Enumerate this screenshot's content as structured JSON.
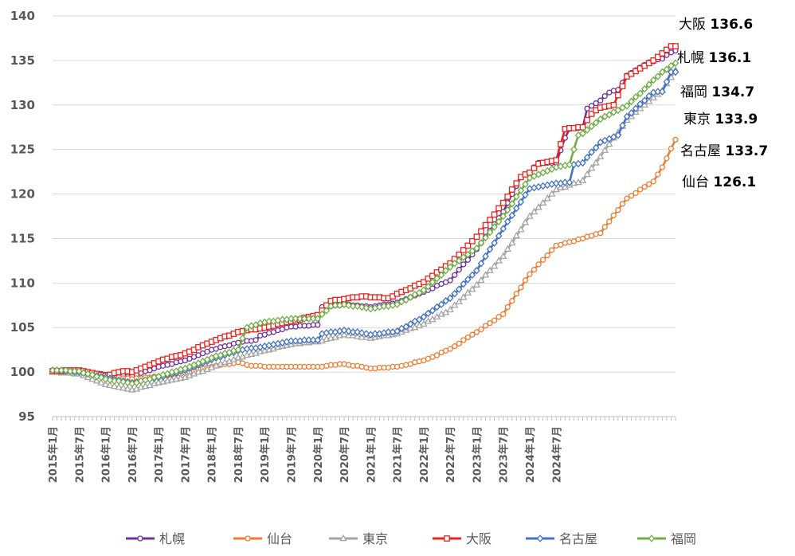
{
  "chart_data": {
    "type": "line",
    "title": "",
    "xlabel": "",
    "ylabel": "",
    "ylim": [
      95,
      140
    ],
    "yticks": [
      95,
      100,
      105,
      110,
      115,
      120,
      125,
      130,
      135,
      140
    ],
    "x_start": "2015年1月",
    "x_end": "2024年12月",
    "xtick_labels": [
      "2015年1月",
      "2015年7月",
      "2016年1月",
      "2016年7月",
      "2017年1月",
      "2017年7月",
      "2018年1月",
      "2018年7月",
      "2019年1月",
      "2019年7月",
      "2020年1月",
      "2020年7月",
      "2021年1月",
      "2021年7月",
      "2022年1月",
      "2022年7月",
      "2023年1月",
      "2023年7月",
      "2024年1月",
      "2024年7月"
    ],
    "grid": "horizontal",
    "legend_position": "bottom",
    "series": [
      {
        "name": "札幌",
        "color": "#7030A0",
        "marker": "circle",
        "anchors": [
          [
            0,
            100.2
          ],
          [
            6,
            100.1
          ],
          [
            12,
            99.7
          ],
          [
            18,
            99.5
          ],
          [
            24,
            100.6
          ],
          [
            30,
            101.3
          ],
          [
            36,
            102.5
          ],
          [
            42,
            103.3
          ],
          [
            46,
            103.6
          ],
          [
            47,
            104.1
          ],
          [
            54,
            105.1
          ],
          [
            60,
            105.3
          ],
          [
            61,
            107.3
          ],
          [
            66,
            107.6
          ],
          [
            72,
            107.3
          ],
          [
            78,
            107.8
          ],
          [
            84,
            109.0
          ],
          [
            90,
            110.3
          ],
          [
            96,
            113.8
          ],
          [
            102,
            118.0
          ],
          [
            106,
            121.9
          ],
          [
            108,
            122.4
          ],
          [
            110,
            123.5
          ],
          [
            114,
            123.5
          ],
          [
            116,
            126.3
          ],
          [
            117,
            127.3
          ],
          [
            120,
            127.5
          ],
          [
            121,
            129.6
          ],
          [
            124,
            130.5
          ],
          [
            126,
            131.4
          ],
          [
            128,
            131.7
          ],
          [
            130,
            133.3
          ],
          [
            135,
            134.8
          ],
          [
            138,
            135.2
          ],
          [
            140,
            135.9
          ],
          [
            141,
            136.1
          ]
        ],
        "end_label": "136.1"
      },
      {
        "name": "仙台",
        "color": "#ED7D31",
        "marker": "circle",
        "anchors": [
          [
            0,
            100.1
          ],
          [
            12,
            99.6
          ],
          [
            18,
            99.2
          ],
          [
            24,
            99.5
          ],
          [
            30,
            99.9
          ],
          [
            36,
            100.6
          ],
          [
            42,
            101.1
          ],
          [
            45,
            100.7
          ],
          [
            50,
            100.6
          ],
          [
            60,
            100.6
          ],
          [
            66,
            100.9
          ],
          [
            72,
            100.4
          ],
          [
            78,
            100.6
          ],
          [
            84,
            101.3
          ],
          [
            90,
            102.6
          ],
          [
            96,
            104.5
          ],
          [
            102,
            106.5
          ],
          [
            108,
            111.0
          ],
          [
            114,
            114.2
          ],
          [
            120,
            115.0
          ],
          [
            124,
            115.6
          ],
          [
            130,
            119.5
          ],
          [
            136,
            121.4
          ],
          [
            138,
            123.0
          ],
          [
            141,
            126.1
          ]
        ],
        "end_label": "126.1"
      },
      {
        "name": "東京",
        "color": "#A5A5A5",
        "marker": "triangle",
        "anchors": [
          [
            0,
            100.0
          ],
          [
            6,
            99.8
          ],
          [
            12,
            98.6
          ],
          [
            18,
            98.0
          ],
          [
            24,
            98.8
          ],
          [
            30,
            99.4
          ],
          [
            36,
            100.5
          ],
          [
            42,
            101.6
          ],
          [
            48,
            102.4
          ],
          [
            54,
            103.1
          ],
          [
            60,
            103.4
          ],
          [
            66,
            104.2
          ],
          [
            72,
            103.8
          ],
          [
            78,
            104.3
          ],
          [
            84,
            105.4
          ],
          [
            90,
            107.0
          ],
          [
            96,
            109.8
          ],
          [
            102,
            113.0
          ],
          [
            108,
            117.5
          ],
          [
            114,
            120.5
          ],
          [
            120,
            121.5
          ],
          [
            124,
            124.2
          ],
          [
            130,
            128.3
          ],
          [
            134,
            130.0
          ],
          [
            138,
            131.6
          ],
          [
            141,
            133.9
          ]
        ],
        "end_label": "133.9"
      },
      {
        "name": "大阪",
        "color": "#E8221D",
        "marker": "square",
        "anchors": [
          [
            0,
            100.1
          ],
          [
            6,
            100.2
          ],
          [
            12,
            99.6
          ],
          [
            16,
            100.1
          ],
          [
            18,
            100.0
          ],
          [
            24,
            101.2
          ],
          [
            30,
            102.1
          ],
          [
            36,
            103.4
          ],
          [
            42,
            104.5
          ],
          [
            48,
            105.0
          ],
          [
            54,
            105.7
          ],
          [
            60,
            106.4
          ],
          [
            63,
            108.0
          ],
          [
            70,
            108.5
          ],
          [
            76,
            108.3
          ],
          [
            84,
            110.1
          ],
          [
            90,
            112.2
          ],
          [
            96,
            115.2
          ],
          [
            102,
            119.0
          ],
          [
            106,
            121.9
          ],
          [
            108,
            122.4
          ],
          [
            110,
            123.4
          ],
          [
            114,
            123.8
          ],
          [
            116,
            127.3
          ],
          [
            120,
            127.5
          ],
          [
            122,
            129.0
          ],
          [
            124,
            129.7
          ],
          [
            127,
            130.0
          ],
          [
            130,
            133.2
          ],
          [
            136,
            135.0
          ],
          [
            138,
            135.8
          ],
          [
            140,
            136.6
          ],
          [
            141,
            136.6
          ]
        ],
        "end_label": "136.6"
      },
      {
        "name": "名古屋",
        "color": "#4472C4",
        "marker": "diamond",
        "anchors": [
          [
            0,
            100.2
          ],
          [
            6,
            100.0
          ],
          [
            12,
            99.4
          ],
          [
            18,
            98.8
          ],
          [
            24,
            99.4
          ],
          [
            30,
            100.2
          ],
          [
            36,
            101.4
          ],
          [
            42,
            102.4
          ],
          [
            48,
            102.9
          ],
          [
            54,
            103.5
          ],
          [
            60,
            103.6
          ],
          [
            61,
            104.3
          ],
          [
            66,
            104.7
          ],
          [
            72,
            104.2
          ],
          [
            78,
            104.6
          ],
          [
            84,
            106.2
          ],
          [
            90,
            108.3
          ],
          [
            96,
            111.4
          ],
          [
            102,
            116.1
          ],
          [
            108,
            120.6
          ],
          [
            114,
            121.2
          ],
          [
            117,
            121.3
          ],
          [
            118,
            123.3
          ],
          [
            120,
            123.5
          ],
          [
            124,
            125.8
          ],
          [
            128,
            126.6
          ],
          [
            130,
            128.7
          ],
          [
            136,
            131.4
          ],
          [
            138,
            131.5
          ],
          [
            140,
            133.7
          ],
          [
            141,
            133.7
          ]
        ],
        "end_label": "133.7"
      },
      {
        "name": "福岡",
        "color": "#70AD47",
        "marker": "diamond",
        "anchors": [
          [
            0,
            100.2
          ],
          [
            6,
            100.1
          ],
          [
            12,
            99.2
          ],
          [
            18,
            98.7
          ],
          [
            24,
            99.5
          ],
          [
            30,
            100.4
          ],
          [
            36,
            101.6
          ],
          [
            42,
            102.5
          ],
          [
            44,
            105.0
          ],
          [
            48,
            105.6
          ],
          [
            54,
            106.0
          ],
          [
            60,
            106.0
          ],
          [
            63,
            107.4
          ],
          [
            66,
            107.6
          ],
          [
            72,
            107.1
          ],
          [
            78,
            107.6
          ],
          [
            84,
            109.2
          ],
          [
            90,
            111.8
          ],
          [
            96,
            113.9
          ],
          [
            102,
            117.5
          ],
          [
            108,
            121.8
          ],
          [
            114,
            123.0
          ],
          [
            117,
            123.3
          ],
          [
            119,
            126.6
          ],
          [
            120,
            126.8
          ],
          [
            124,
            128.4
          ],
          [
            130,
            129.9
          ],
          [
            134,
            131.8
          ],
          [
            138,
            133.7
          ],
          [
            141,
            134.7
          ]
        ],
        "end_label": "134.7"
      }
    ]
  }
}
